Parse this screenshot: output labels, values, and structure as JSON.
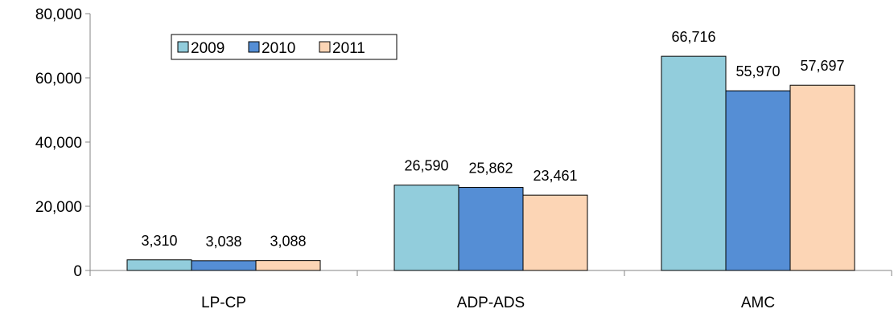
{
  "chart_data": {
    "type": "bar",
    "title": "",
    "xlabel": "",
    "ylabel": "",
    "categories": [
      "LP-CP",
      "ADP-ADS",
      "AMC"
    ],
    "series": [
      {
        "name": "2009",
        "values": [
          3310,
          26590,
          66716
        ],
        "labels": [
          "3,310",
          "26,590",
          "66,716"
        ],
        "color": "#92cddc"
      },
      {
        "name": "2010",
        "values": [
          3038,
          25862,
          55970
        ],
        "labels": [
          "3,038",
          "25,862",
          "55,970"
        ],
        "color": "#558ed5"
      },
      {
        "name": "2011",
        "values": [
          3088,
          23461,
          57697
        ],
        "labels": [
          "3,088",
          "23,461",
          "57,697"
        ],
        "color": "#fcd5b5"
      }
    ],
    "ylim": [
      0,
      80000
    ],
    "yticks": [
      0,
      20000,
      40000,
      60000,
      80000
    ],
    "ytick_labels": [
      "0",
      "20,000",
      "40,000",
      "60,000",
      "80,000"
    ],
    "grid": false,
    "legend_position": "top-left",
    "data_labels": true
  }
}
